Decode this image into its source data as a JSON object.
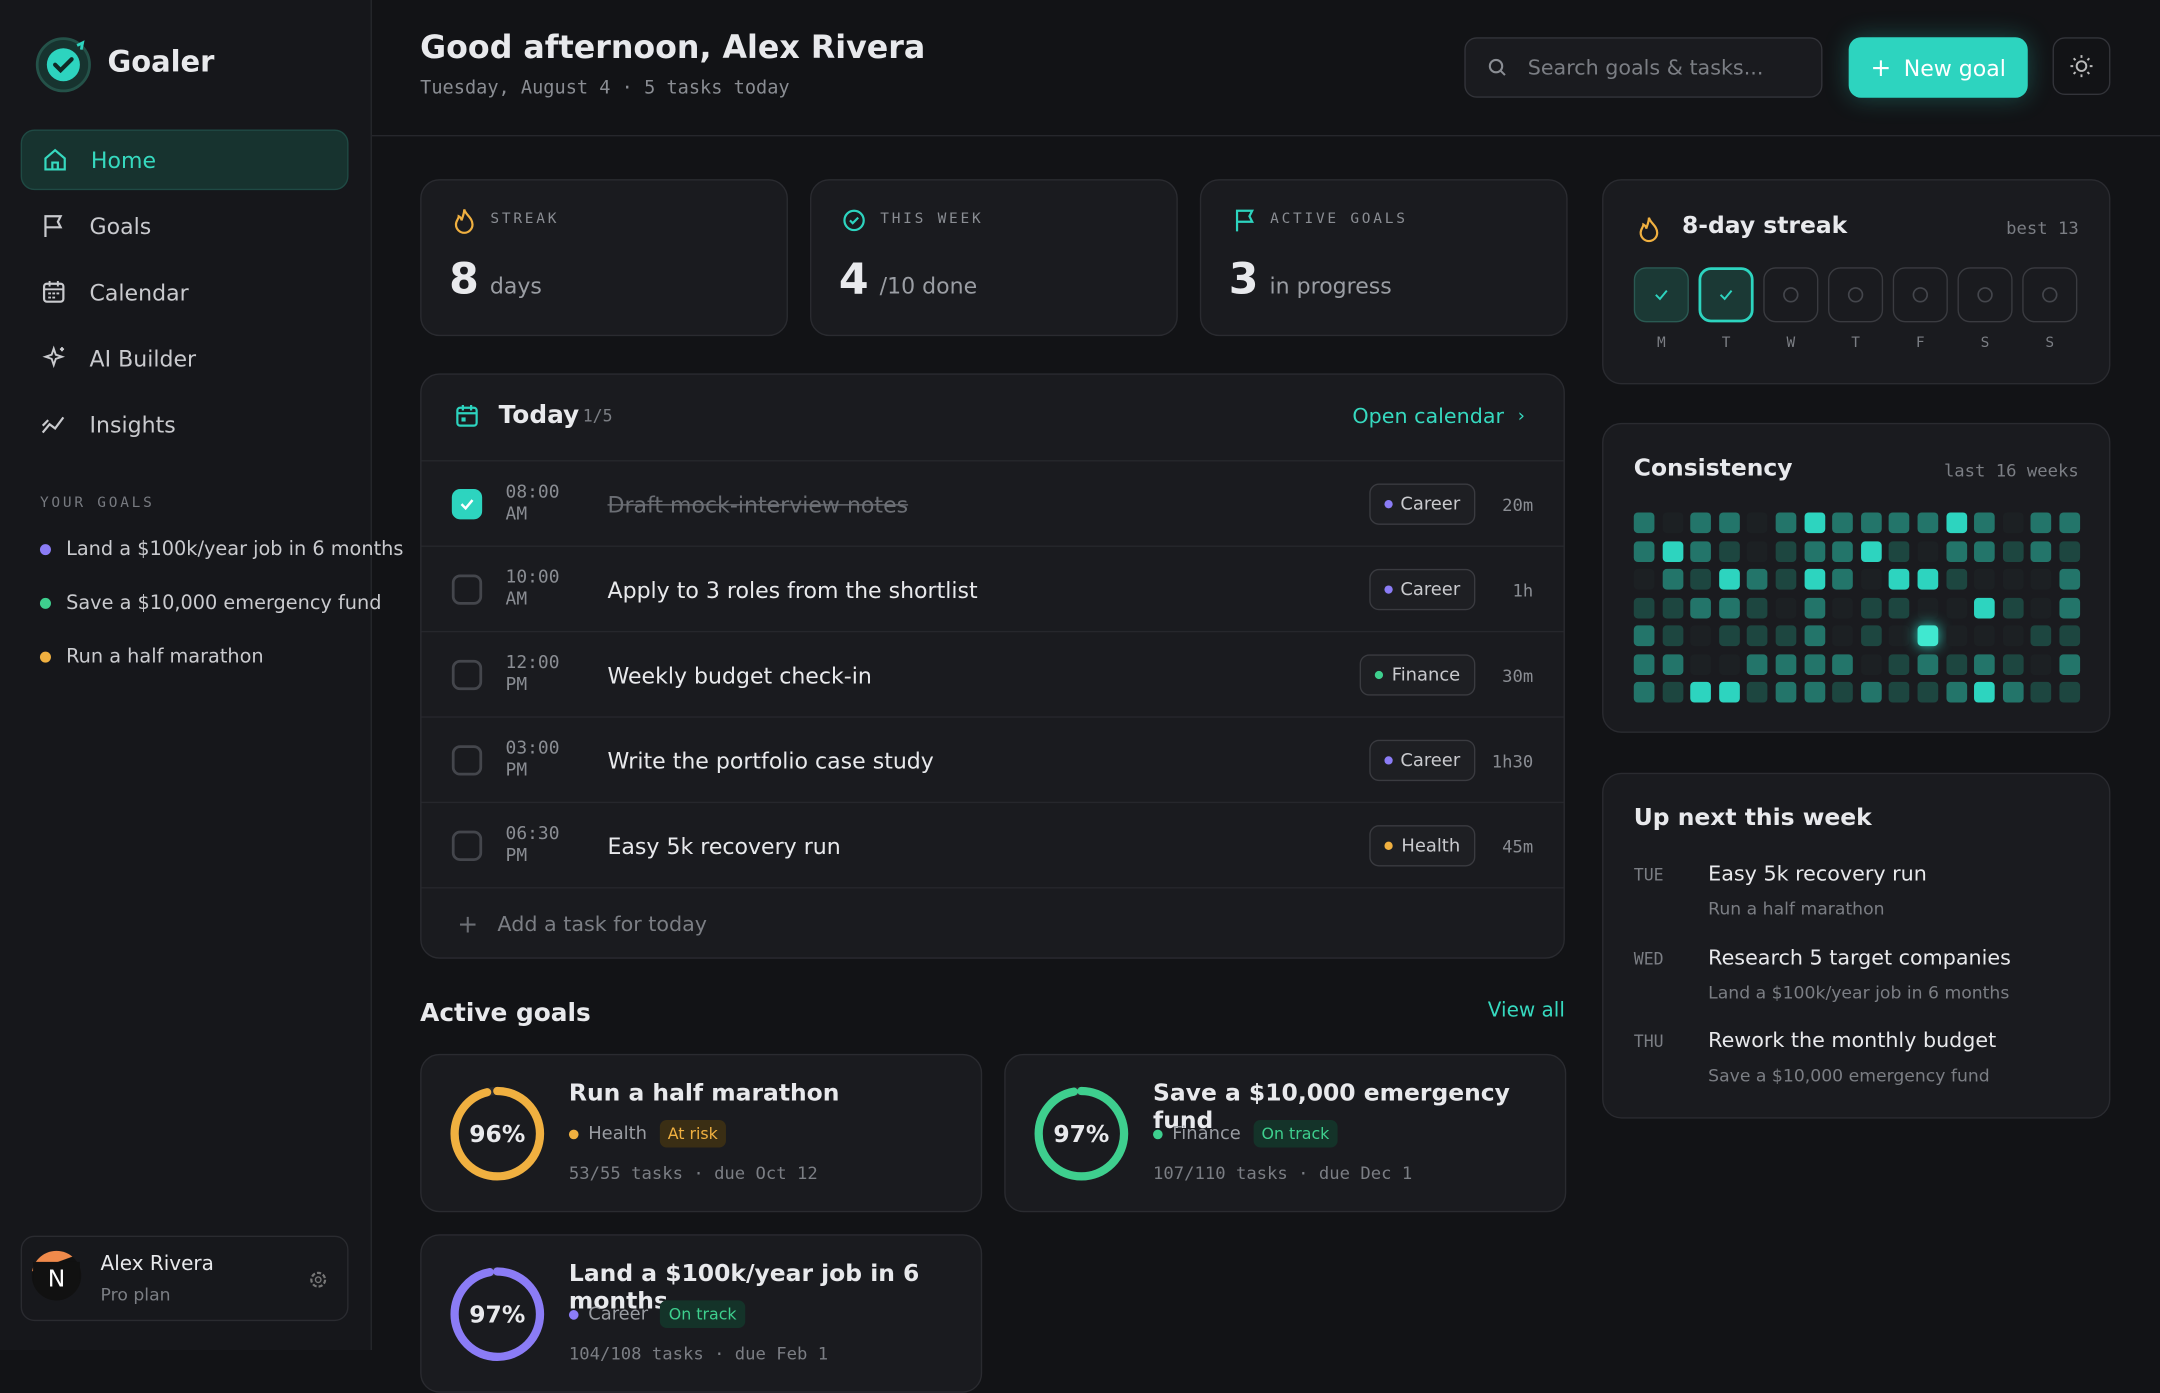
{
  "app": {
    "name": "Goaler",
    "nav": [
      "Home",
      "Goals",
      "Calendar",
      "AI Builder",
      "Insights"
    ],
    "active_nav": 0,
    "goals_heading": "YOUR GOALS",
    "goals": [
      {
        "name": "Land a $100k/year job in 6 months",
        "color": "#8b7cf6"
      },
      {
        "name": "Save a $10,000 emergency fund",
        "color": "#3ecf8e"
      },
      {
        "name": "Run a half marathon",
        "color": "#f0b040"
      }
    ],
    "user": {
      "name": "Alex Rivera",
      "plan": "Pro plan",
      "avatar": "N"
    }
  },
  "header": {
    "greeting": "Good afternoon, Alex Rivera",
    "subtitle": "Tuesday, August 4 · 5 tasks today",
    "search_placeholder": "Search goals & tasks...",
    "button": "New goal"
  },
  "stats": [
    {
      "label": "STREAK",
      "value": "8",
      "unit": "days"
    },
    {
      "label": "THIS WEEK",
      "value": "4",
      "unit": "/10 done"
    },
    {
      "label": "ACTIVE GOALS",
      "value": "3",
      "unit": "in progress"
    }
  ],
  "today": {
    "title": "Today",
    "count": "1/5",
    "link": "Open calendar",
    "add": "Add a task for today",
    "tasks": [
      {
        "time": "08:00 AM",
        "title": "Draft mock-interview notes",
        "tag": "Career",
        "tag_color": "#8b7cf6",
        "duration": "20m",
        "done": true
      },
      {
        "time": "10:00 AM",
        "title": "Apply to 3 roles from the shortlist",
        "tag": "Career",
        "tag_color": "#8b7cf6",
        "duration": "1h",
        "done": false
      },
      {
        "time": "12:00 PM",
        "title": "Weekly budget check-in",
        "tag": "Finance",
        "tag_color": "#3ecf8e",
        "duration": "30m",
        "done": false
      },
      {
        "time": "03:00 PM",
        "title": "Write the portfolio case study",
        "tag": "Career",
        "tag_color": "#8b7cf6",
        "duration": "1h30",
        "done": false
      },
      {
        "time": "06:30 PM",
        "title": "Easy 5k recovery run",
        "tag": "Health",
        "tag_color": "#f0b040",
        "duration": "45m",
        "done": false
      }
    ]
  },
  "active_goals": {
    "title": "Active goals",
    "link": "View all",
    "goals": [
      {
        "title": "Run a half marathon",
        "progress": 96,
        "progress_label": "96%",
        "category": "Health",
        "color": "#f0b040",
        "status": "At risk",
        "status_kind": "risk",
        "meta": "53/55 tasks · due Oct 12"
      },
      {
        "title": "Save a $10,000 emergency fund",
        "progress": 97,
        "progress_label": "97%",
        "category": "Finance",
        "color": "#3ecf8e",
        "status": "On track",
        "status_kind": "ok",
        "meta": "107/110 tasks · due Dec 1"
      },
      {
        "title": "Land a $100k/year job in 6 months",
        "progress": 97,
        "progress_label": "97%",
        "category": "Career",
        "color": "#8b7cf6",
        "status": "On track",
        "status_kind": "ok",
        "meta": "104/108 tasks · due Feb 1"
      }
    ]
  },
  "streak": {
    "title": "8-day streak",
    "best": "best 13",
    "days": [
      "M",
      "T",
      "W",
      "T",
      "F",
      "S",
      "S"
    ],
    "done": [
      true,
      true,
      false,
      false,
      false,
      false,
      false
    ],
    "current": 1
  },
  "consistency": {
    "title": "Consistency",
    "range": "last 16 weeks",
    "levels": [
      [
        2,
        0,
        2,
        2,
        0,
        2,
        3,
        2,
        2,
        2,
        2,
        3,
        2,
        0,
        2,
        2
      ],
      [
        2,
        3,
        2,
        1,
        0,
        1,
        2,
        2,
        3,
        1,
        0,
        2,
        2,
        1,
        2,
        1
      ],
      [
        0,
        2,
        1,
        3,
        2,
        1,
        3,
        2,
        0,
        3,
        3,
        1,
        0,
        0,
        0,
        2
      ],
      [
        1,
        1,
        2,
        2,
        1,
        0,
        2,
        0,
        1,
        1,
        0,
        0,
        3,
        1,
        0,
        2
      ],
      [
        2,
        1,
        0,
        1,
        1,
        1,
        2,
        0,
        1,
        0,
        4,
        0,
        0,
        0,
        1,
        1
      ],
      [
        2,
        2,
        0,
        0,
        2,
        2,
        2,
        2,
        0,
        1,
        2,
        1,
        2,
        1,
        0,
        2
      ],
      [
        2,
        1,
        3,
        3,
        1,
        2,
        2,
        1,
        2,
        1,
        1,
        2,
        3,
        2,
        1,
        1
      ]
    ]
  },
  "up_next": {
    "title": "Up next this week",
    "items": [
      {
        "day": "TUE",
        "title": "Easy 5k recovery run",
        "goal": "Run a half marathon"
      },
      {
        "day": "WED",
        "title": "Research 5 target companies",
        "goal": "Land a $100k/year job in 6 months"
      },
      {
        "day": "THU",
        "title": "Rework the monthly budget",
        "goal": "Save a $10,000 emergency fund"
      }
    ]
  }
}
